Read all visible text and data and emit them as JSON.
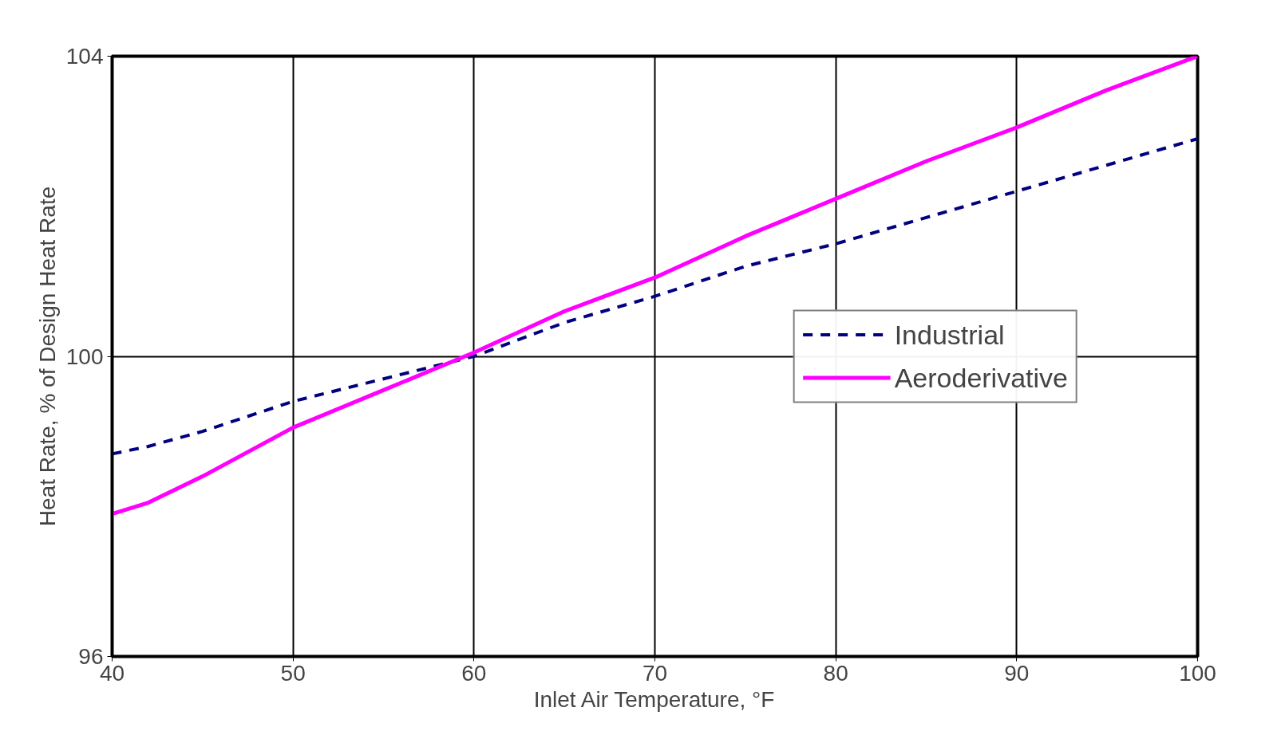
{
  "chart_data": {
    "type": "line",
    "xlabel": "Inlet Air Temperature, °F",
    "ylabel": "Heat Rate, % of Design Heat Rate",
    "x": [
      40,
      42,
      45,
      50,
      55,
      60,
      65,
      70,
      75,
      80,
      85,
      90,
      95,
      100
    ],
    "series": [
      {
        "name": "Industrial",
        "color": "#000080",
        "line_style": "dashed",
        "values": [
          98.7,
          98.8,
          99.0,
          99.4,
          99.7,
          100.0,
          100.45,
          100.8,
          101.2,
          101.5,
          101.85,
          102.2,
          102.55,
          102.9
        ]
      },
      {
        "name": "Aeroderivative",
        "color": "#ff00ff",
        "line_style": "solid",
        "values": [
          97.9,
          98.05,
          98.4,
          99.05,
          99.55,
          100.05,
          100.6,
          101.05,
          101.6,
          102.1,
          102.6,
          103.05,
          103.55,
          104.0
        ]
      }
    ],
    "xlim": [
      40,
      100
    ],
    "ylim": [
      96,
      104
    ],
    "xticks": [
      40,
      50,
      60,
      70,
      80,
      90,
      100
    ],
    "yticks": [
      96,
      100,
      104
    ],
    "grid": true,
    "legend": "right",
    "marker": "none"
  }
}
